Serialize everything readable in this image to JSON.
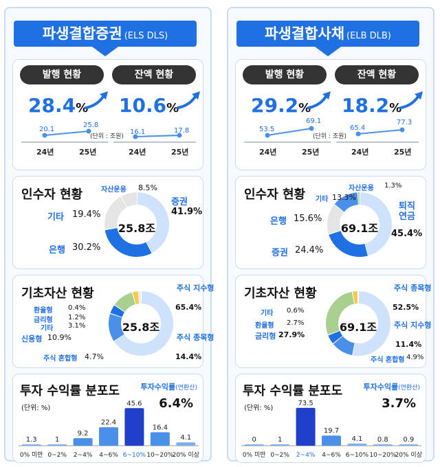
{
  "left": {
    "title": "파생결합증권",
    "title_sub": "(ELS DLS)",
    "issue": {
      "label": "발행 현황",
      "rate": "28.4",
      "unit": "%",
      "y24": "20.1",
      "y25": "25.8"
    },
    "balance": {
      "label": "잔액 현황",
      "rate": "10.6",
      "unit": "%",
      "y24": "16.1",
      "y25": "17.8"
    },
    "unit_note": "(단위 : 조원)",
    "year_labels": [
      "24년",
      "25년"
    ],
    "acquirer": {
      "title": "인수자 현황",
      "center": "25.8조",
      "items": [
        {
          "name": "증권",
          "value": "41.9%"
        },
        {
          "name": "은행",
          "value": "30.2%"
        },
        {
          "name": "기타",
          "value": "19.4%"
        },
        {
          "name": "자산운용",
          "value": "8.5%"
        }
      ]
    },
    "underlying": {
      "title": "기초자산 현황",
      "center": "25.8조",
      "items": [
        {
          "name": "주식 지수형",
          "value": "65.4%"
        },
        {
          "name": "주식 종목형",
          "value": "14.4%"
        },
        {
          "name": "주식 혼합형",
          "value": "4.7%"
        },
        {
          "name": "신용형",
          "value": "10.9%"
        },
        {
          "name": "기타",
          "value": "3.1%"
        },
        {
          "name": "금리형",
          "value": "1.2%"
        },
        {
          "name": "환율형",
          "value": "0.4%"
        }
      ]
    },
    "dist": {
      "title": "투자 수익률 분포도",
      "unit": "(단위: %)",
      "rate_label": "투자수익률",
      "rate_label_sub": "(연환산)",
      "rate_value": "6.4%"
    }
  },
  "right": {
    "title": "파생결합사채",
    "title_sub": "(ELB DLB)",
    "issue": {
      "label": "발행 현황",
      "rate": "29.2",
      "unit": "%",
      "y24": "53.5",
      "y25": "69.1"
    },
    "balance": {
      "label": "잔액 현황",
      "rate": "18.2",
      "unit": "%",
      "y24": "65.4",
      "y25": "77.3"
    },
    "unit_note": "(단위 : 조원)",
    "year_labels": [
      "24년",
      "25년"
    ],
    "acquirer": {
      "title": "인수자 현황",
      "center": "69.1조",
      "items": [
        {
          "name": "퇴직 연금",
          "value": "45.4%"
        },
        {
          "name": "증권",
          "value": "24.4%"
        },
        {
          "name": "은행",
          "value": "15.6%"
        },
        {
          "name": "기타",
          "value": "13.3%"
        },
        {
          "name": "자산운용",
          "value": "1.3%"
        }
      ]
    },
    "underlying": {
      "title": "기초자산 현황",
      "center": "69.1조",
      "items": [
        {
          "name": "주식 종목형",
          "value": "52.5%"
        },
        {
          "name": "주식 지수형",
          "value": "11.4%"
        },
        {
          "name": "주식 혼합형",
          "value": "4.9%"
        },
        {
          "name": "금리형",
          "value": "27.9%"
        },
        {
          "name": "환율형",
          "value": "2.7%"
        },
        {
          "name": "기타",
          "value": "0.6%"
        }
      ]
    },
    "dist": {
      "title": "투자 수익률 분포도",
      "unit": "(단위: %)",
      "rate_label": "투자수익률",
      "rate_label_sub": "(연환산)",
      "rate_value": "3.7%"
    }
  },
  "colors": {
    "primary": "#1f70e3",
    "light": "#cfe2fb",
    "mid": "#4a90e8",
    "gray": "#e5e5e5",
    "green": "#a9d08e",
    "yellow": "#f7c948",
    "highlight": "#1d3fc9"
  },
  "chart_data": [
    {
      "type": "line",
      "title": "발행 현황",
      "categories": [
        "24년",
        "25년"
      ],
      "values": [
        20.1,
        25.8
      ],
      "group": "ELS DLS"
    },
    {
      "type": "line",
      "title": "잔액 현황",
      "categories": [
        "24년",
        "25년"
      ],
      "values": [
        16.1,
        17.8
      ],
      "group": "ELS DLS"
    },
    {
      "type": "pie",
      "title": "인수자 현황",
      "center_label": "25.8조",
      "group": "ELS DLS",
      "labels": [
        "증권",
        "은행",
        "기타",
        "자산운용"
      ],
      "values": [
        41.9,
        30.2,
        19.4,
        8.5
      ],
      "colors": [
        "#cfe2fb",
        "#1f70e3",
        "#e5e5e5",
        "#e5e5e5"
      ]
    },
    {
      "type": "pie",
      "title": "기초자산 현황",
      "center_label": "25.8조",
      "group": "ELS DLS",
      "labels": [
        "주식 지수형",
        "주식 종목형",
        "주식 혼합형",
        "신용형",
        "기타",
        "금리형",
        "환율형"
      ],
      "values": [
        65.4,
        14.4,
        4.7,
        10.9,
        3.1,
        1.2,
        0.4
      ],
      "colors": [
        "#cfe2fb",
        "#4a90e8",
        "#1f70e3",
        "#a9d08e",
        "#f7c948",
        "#e5e5e5",
        "#e5e5e5"
      ]
    },
    {
      "type": "bar",
      "title": "투자 수익률 분포도",
      "group": "ELS DLS",
      "categories": [
        "0% 미만",
        "0~2%",
        "2~4%",
        "4~6%",
        "6~10%",
        "10~20%",
        "20% 이상"
      ],
      "values": [
        1.3,
        1.0,
        9.2,
        22.4,
        45.6,
        16.4,
        4.1
      ],
      "highlight_index": 4,
      "ylim": [
        0,
        50
      ]
    },
    {
      "type": "line",
      "title": "발행 현황",
      "categories": [
        "24년",
        "25년"
      ],
      "values": [
        53.5,
        69.1
      ],
      "group": "ELB DLB"
    },
    {
      "type": "line",
      "title": "잔액 현황",
      "categories": [
        "24년",
        "25년"
      ],
      "values": [
        65.4,
        77.3
      ],
      "group": "ELB DLB"
    },
    {
      "type": "pie",
      "title": "인수자 현황",
      "center_label": "69.1조",
      "group": "ELB DLB",
      "labels": [
        "퇴직 연금",
        "증권",
        "은행",
        "기타",
        "자산운용"
      ],
      "values": [
        45.4,
        24.4,
        15.6,
        13.3,
        1.3
      ],
      "colors": [
        "#cfe2fb",
        "#1f70e3",
        "#e5e5e5",
        "#4a90e8",
        "#a9d08e"
      ]
    },
    {
      "type": "pie",
      "title": "기초자산 현황",
      "center_label": "69.1조",
      "group": "ELB DLB",
      "labels": [
        "주식 종목형",
        "주식 지수형",
        "주식 혼합형",
        "금리형",
        "환율형",
        "기타"
      ],
      "values": [
        52.5,
        11.4,
        4.9,
        27.9,
        2.7,
        0.6
      ],
      "colors": [
        "#cfe2fb",
        "#4a90e8",
        "#1f70e3",
        "#a9d08e",
        "#f7c948",
        "#e5e5e5"
      ]
    },
    {
      "type": "bar",
      "title": "투자 수익률 분포도",
      "group": "ELB DLB",
      "categories": [
        "0% 미만",
        "0~2%",
        "2~4%",
        "4~6%",
        "6~10%",
        "10~20%",
        "20% 이상"
      ],
      "values": [
        0,
        1.0,
        73.5,
        19.7,
        4.1,
        0.8,
        0.9
      ],
      "highlight_index": 2,
      "ylim": [
        0,
        80
      ]
    }
  ]
}
